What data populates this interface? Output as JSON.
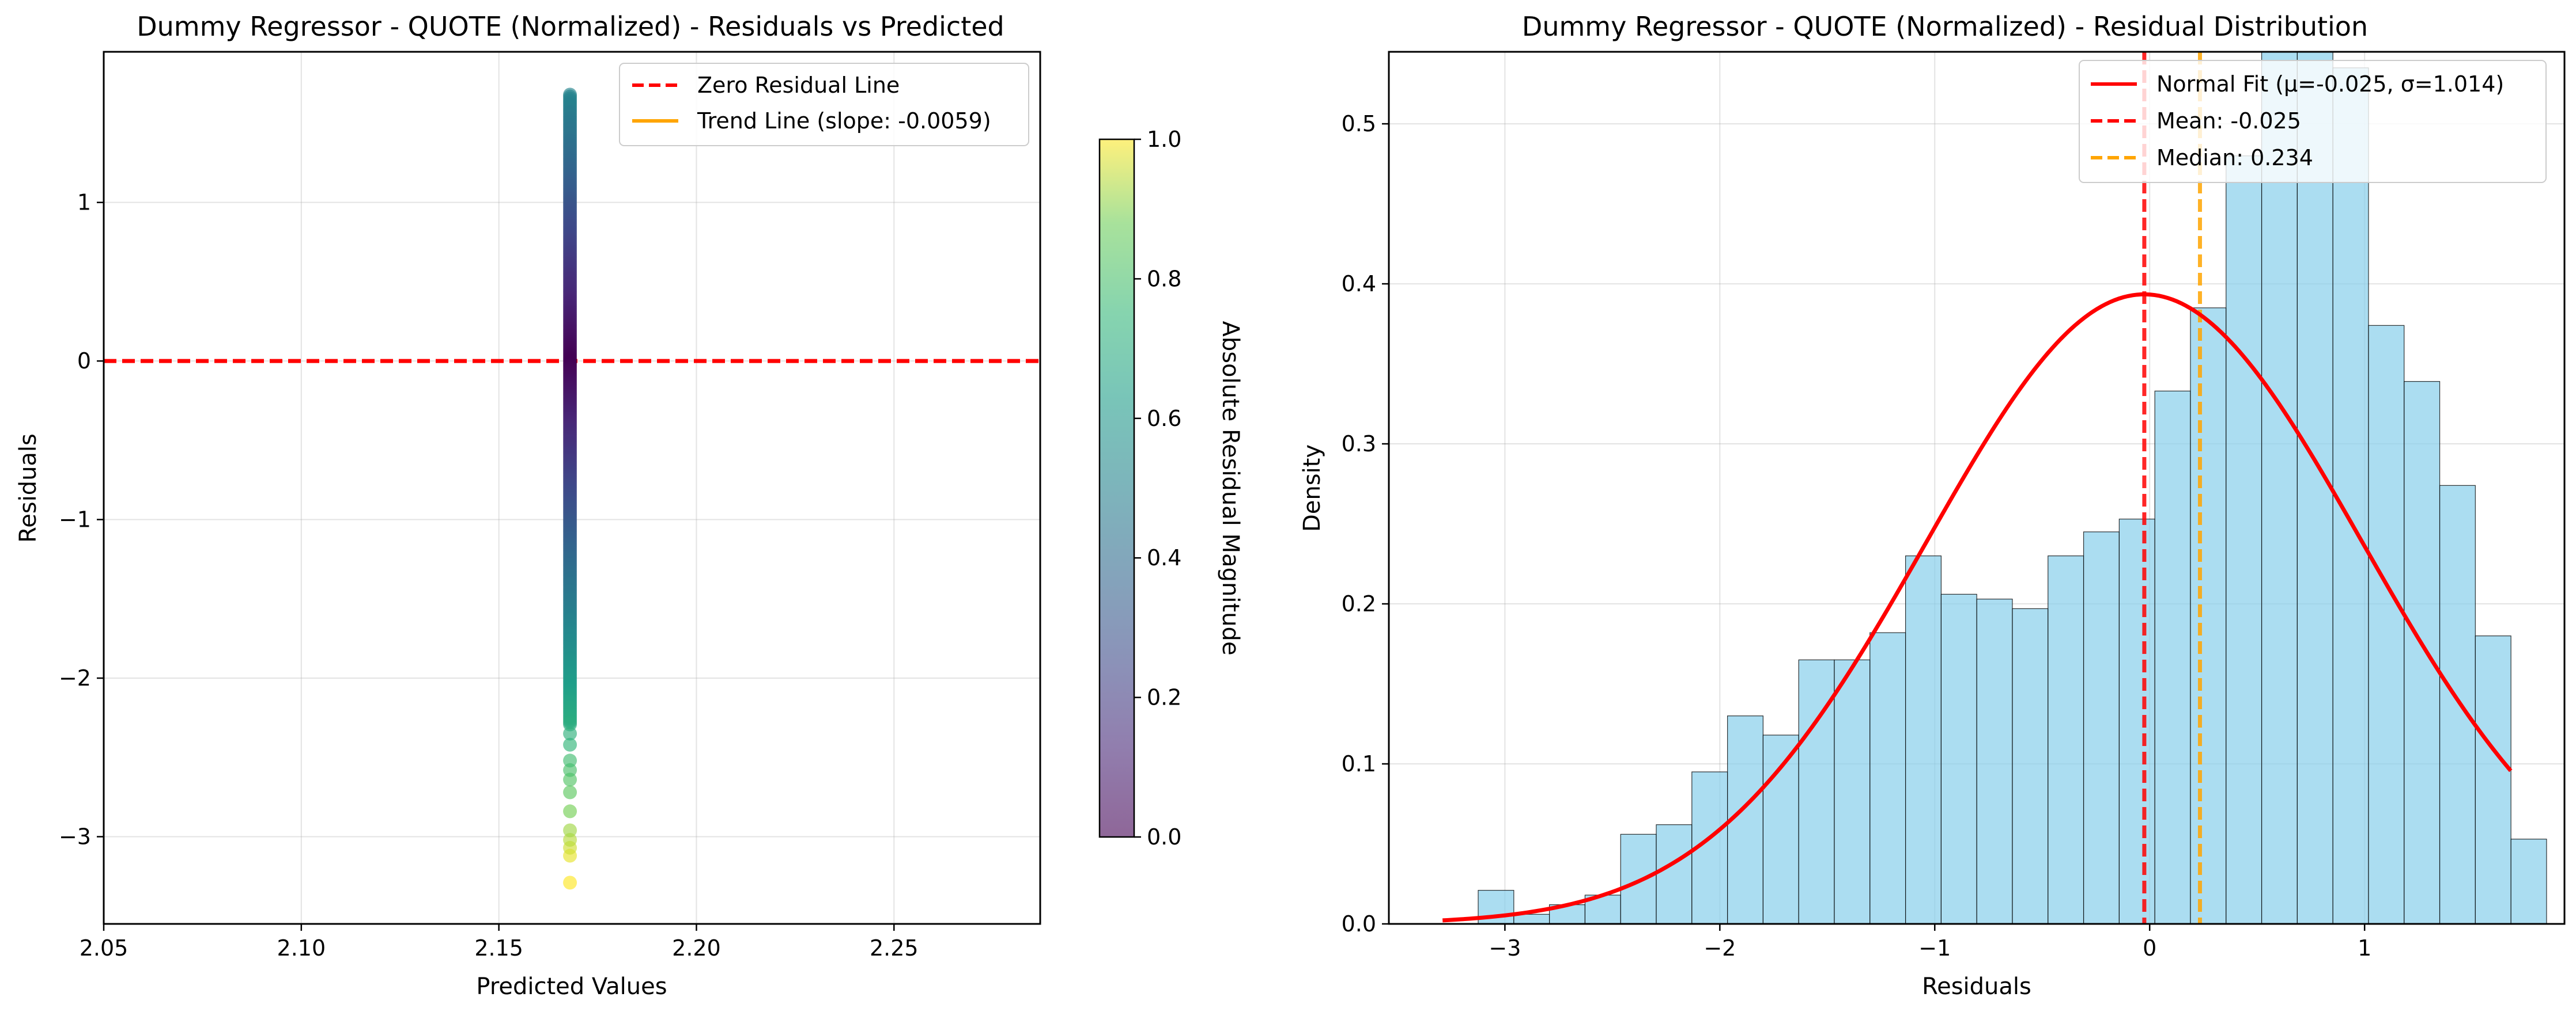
{
  "chart_data": [
    {
      "type": "scatter",
      "title": "Dummy Regressor - QUOTE (Normalized) - Residuals vs Predicted",
      "xlabel": "Predicted Values",
      "ylabel": "Residuals",
      "xlim": [
        2.05,
        2.287
      ],
      "ylim": [
        -3.55,
        1.95
      ],
      "xticks": [
        "2.05",
        "2.10",
        "2.15",
        "2.20",
        "2.25"
      ],
      "xtick_values": [
        2.05,
        2.1,
        2.15,
        2.2,
        2.25
      ],
      "yticks": [
        "−3",
        "−2",
        "−1",
        "0",
        "1"
      ],
      "ytick_values": [
        -3,
        -2,
        -1,
        0,
        1
      ],
      "grid": true,
      "legend_position": "top-right",
      "legend": [
        {
          "label": "Zero Residual Line",
          "color": "#ff0000",
          "style": "dashed"
        },
        {
          "label": "Trend Line (slope: -0.0059)",
          "color": "#ffa500",
          "style": "solid"
        }
      ],
      "zero_line": 0,
      "predicted_value": 2.168,
      "residual_range": [
        -3.29,
        1.68
      ],
      "points": [
        {
          "y": -3.29,
          "c": 1.0
        },
        {
          "y": -3.12,
          "c": 0.98
        },
        {
          "y": -3.07,
          "c": 0.96
        },
        {
          "y": -3.02,
          "c": 0.94
        },
        {
          "y": -2.96,
          "c": 0.92
        },
        {
          "y": -2.84,
          "c": 0.88
        },
        {
          "y": -2.72,
          "c": 0.84
        },
        {
          "y": -2.64,
          "c": 0.82
        },
        {
          "y": -2.58,
          "c": 0.8
        },
        {
          "y": -2.52,
          "c": 0.78
        },
        {
          "y": -2.42,
          "c": 0.74
        },
        {
          "y": -2.35,
          "c": 0.72
        }
      ],
      "colorbar": {
        "label": "Absolute Residual Magnitude",
        "range": [
          0.0,
          1.0
        ],
        "ticks": [
          "0.0",
          "0.2",
          "0.4",
          "0.6",
          "0.8",
          "1.0"
        ],
        "tick_values": [
          0.0,
          0.2,
          0.4,
          0.6,
          0.8,
          1.0
        ],
        "colormap": "viridis"
      }
    },
    {
      "type": "bar",
      "title": "Dummy Regressor - QUOTE (Normalized) - Residual Distribution",
      "xlabel": "Residuals",
      "ylabel": "Density",
      "xlim": [
        -3.54,
        1.93
      ],
      "ylim": [
        0,
        0.545
      ],
      "xticks": [
        "−3",
        "−2",
        "−1",
        "0",
        "1"
      ],
      "xtick_values": [
        -3,
        -2,
        -1,
        0,
        1
      ],
      "yticks": [
        "0.0",
        "0.1",
        "0.2",
        "0.3",
        "0.4",
        "0.5"
      ],
      "ytick_values": [
        0.0,
        0.1,
        0.2,
        0.3,
        0.4,
        0.5
      ],
      "grid": true,
      "legend_position": "top-right",
      "bar_color": "#87ceeb",
      "bin_start": -3.29,
      "bin_width": 0.1657,
      "densities": [
        0.0,
        0.021,
        0.006,
        0.012,
        0.018,
        0.056,
        0.062,
        0.095,
        0.13,
        0.118,
        0.165,
        0.165,
        0.182,
        0.23,
        0.206,
        0.203,
        0.197,
        0.23,
        0.245,
        0.253,
        0.333,
        0.385,
        0.48,
        0.56,
        0.56,
        0.535,
        0.374,
        0.339,
        0.274,
        0.18,
        0.053
      ],
      "normal_fit": {
        "mu": -0.025,
        "sigma": 1.014,
        "x_range": [
          -3.29,
          1.68
        ],
        "color": "#ff0000"
      },
      "mean": -0.025,
      "median": 0.234,
      "legend": [
        {
          "label": "Normal Fit (μ=-0.025, σ=1.014)",
          "color": "#ff0000",
          "style": "solid"
        },
        {
          "label": "Mean: -0.025",
          "color": "#ff0000",
          "style": "dashed"
        },
        {
          "label": "Median: 0.234",
          "color": "#ffa500",
          "style": "dashed"
        }
      ]
    }
  ]
}
